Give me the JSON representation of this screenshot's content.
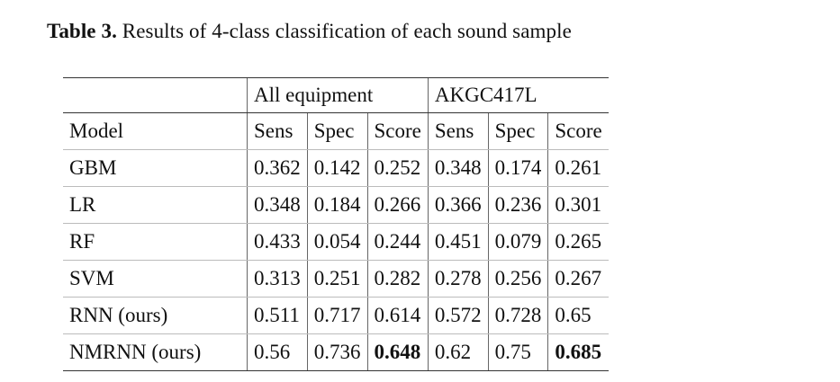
{
  "caption": {
    "label": "Table 3.",
    "text": "Results of 4-class classification of each sound sample"
  },
  "table": {
    "group_headers": [
      "",
      "All equipment",
      "AKGC417L"
    ],
    "column_headers": [
      "Model",
      "Sens",
      "Spec",
      "Score",
      "Sens",
      "Spec",
      "Score"
    ],
    "rows": [
      {
        "model": "GBM",
        "values": [
          "0.362",
          "0.142",
          "0.252",
          "0.348",
          "0.174",
          "0.261"
        ],
        "bold": [
          false,
          false,
          false,
          false,
          false,
          false
        ]
      },
      {
        "model": "LR",
        "values": [
          "0.348",
          "0.184",
          "0.266",
          "0.366",
          "0.236",
          "0.301"
        ],
        "bold": [
          false,
          false,
          false,
          false,
          false,
          false
        ]
      },
      {
        "model": "RF",
        "values": [
          "0.433",
          "0.054",
          "0.244",
          "0.451",
          "0.079",
          "0.265"
        ],
        "bold": [
          false,
          false,
          false,
          false,
          false,
          false
        ]
      },
      {
        "model": "SVM",
        "values": [
          "0.313",
          "0.251",
          "0.282",
          "0.278",
          "0.256",
          "0.267"
        ],
        "bold": [
          false,
          false,
          false,
          false,
          false,
          false
        ]
      },
      {
        "model": "RNN (ours)",
        "values": [
          "0.511",
          "0.717",
          "0.614",
          "0.572",
          "0.728",
          "0.65"
        ],
        "bold": [
          false,
          false,
          false,
          false,
          false,
          false
        ]
      },
      {
        "model": "NMRNN (ours)",
        "values": [
          "0.56",
          "0.736",
          "0.648",
          "0.62",
          "0.75",
          "0.685"
        ],
        "bold": [
          false,
          false,
          true,
          false,
          false,
          true
        ]
      }
    ]
  }
}
